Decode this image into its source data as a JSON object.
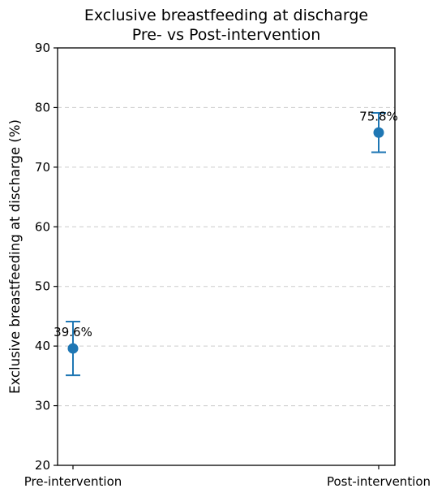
{
  "chart_data": {
    "type": "scatter",
    "title": "Exclusive breastfeeding at discharge",
    "subtitle": "Pre- vs Post-intervention",
    "xlabel": "",
    "ylabel": "Exclusive breastfeeding at discharge (%)",
    "ylim": [
      20,
      90
    ],
    "yticks": [
      20,
      30,
      40,
      50,
      60,
      70,
      80,
      90
    ],
    "grid": "y-dashed",
    "categories": [
      "Pre-intervention",
      "Post-intervention"
    ],
    "points": [
      {
        "category": "Pre-intervention",
        "value": 39.6,
        "lower": 35.1,
        "upper": 44.1,
        "label": "39.6%"
      },
      {
        "category": "Post-intervention",
        "value": 75.8,
        "lower": 72.5,
        "upper": 79.1,
        "label": "75.8%"
      }
    ],
    "color": "#1f77b4"
  }
}
